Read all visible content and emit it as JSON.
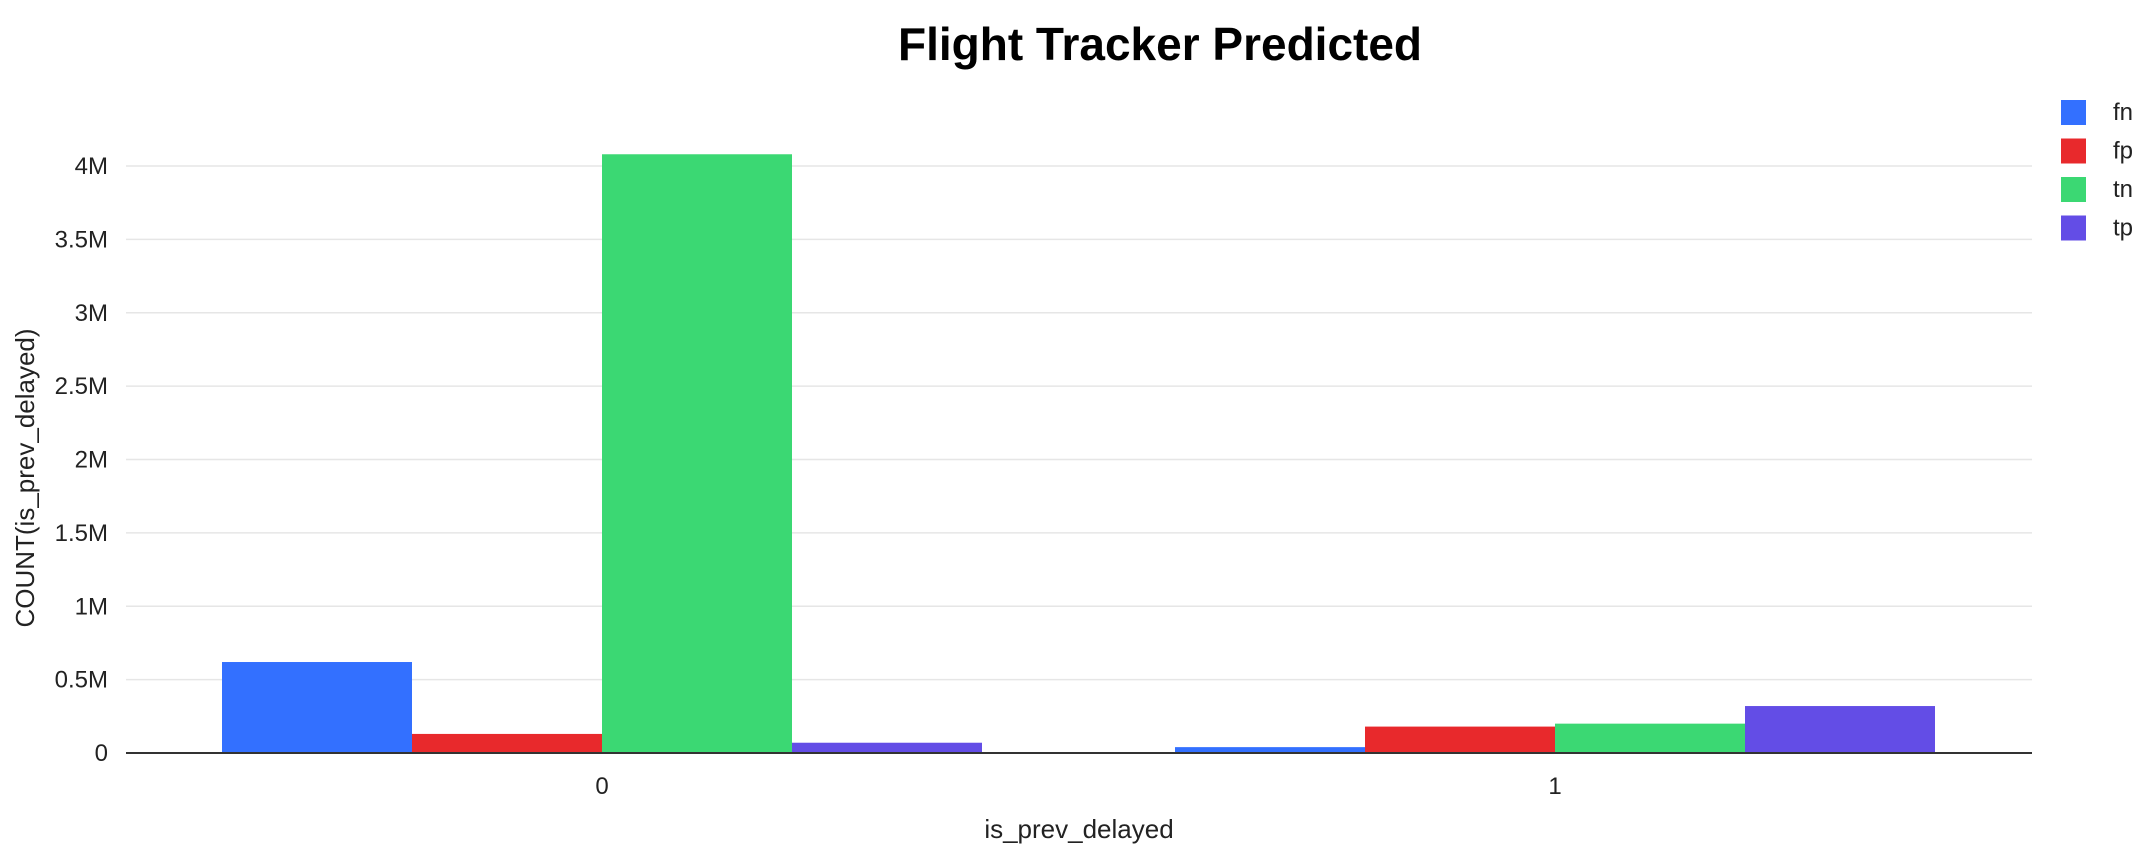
{
  "chart_data": {
    "type": "bar",
    "title": "Flight Tracker Predicted",
    "xlabel": "is_prev_delayed",
    "ylabel": "COUNT(is_prev_delayed)",
    "categories": [
      "0",
      "1"
    ],
    "series": [
      {
        "name": "fn",
        "color": "#3370ff",
        "values": [
          620000,
          40000
        ]
      },
      {
        "name": "fp",
        "color": "#e8292c",
        "values": [
          130000,
          180000
        ]
      },
      {
        "name": "tn",
        "color": "#3bd873",
        "values": [
          4080000,
          200000
        ]
      },
      {
        "name": "tp",
        "color": "#634de6",
        "values": [
          70000,
          320000
        ]
      }
    ],
    "ylim": [
      0,
      4000000
    ],
    "yticks": [
      {
        "value": 0,
        "label": "0"
      },
      {
        "value": 500000,
        "label": "0.5M"
      },
      {
        "value": 1000000,
        "label": "1M"
      },
      {
        "value": 1500000,
        "label": "1.5M"
      },
      {
        "value": 2000000,
        "label": "2M"
      },
      {
        "value": 2500000,
        "label": "2.5M"
      },
      {
        "value": 3000000,
        "label": "3M"
      },
      {
        "value": 3500000,
        "label": "3.5M"
      },
      {
        "value": 4000000,
        "label": "4M"
      }
    ],
    "grid": true,
    "legend_position": "top-right"
  }
}
